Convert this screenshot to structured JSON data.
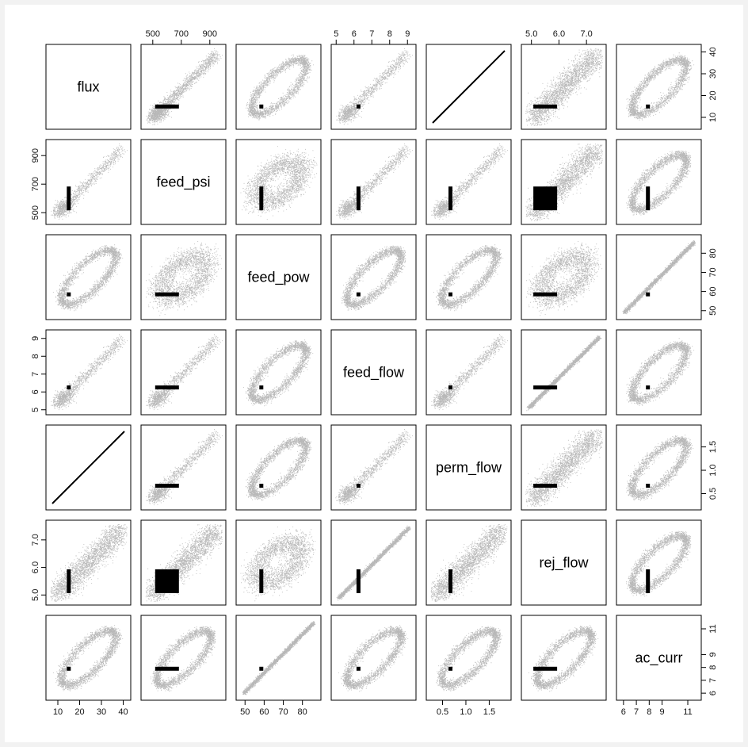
{
  "chart_data": {
    "type": "scatter",
    "subtype": "scatterplot-matrix",
    "title": "",
    "grid": false,
    "variables": [
      {
        "name": "flux",
        "range": [
          6,
          42
        ],
        "ticks": [
          "10",
          "20",
          "30",
          "40"
        ]
      },
      {
        "name": "feed_psi",
        "range": [
          440,
          990
        ],
        "ticks": [
          "500",
          "700",
          "900"
        ]
      },
      {
        "name": "feed_pow",
        "range": [
          47,
          88
        ],
        "ticks": [
          "50",
          "60",
          "70",
          "80"
        ]
      },
      {
        "name": "feed_flow",
        "range": [
          4.9,
          9.3
        ],
        "ticks": [
          "5",
          "6",
          "7",
          "8",
          "9"
        ]
      },
      {
        "name": "perm_flow",
        "range": [
          0.22,
          1.9
        ],
        "ticks": [
          "0.5",
          "1.0",
          "1.5"
        ]
      },
      {
        "name": "rej_flow",
        "range": [
          4.75,
          7.6
        ],
        "ticks": [
          "5.0",
          "6.0",
          "7.0"
        ]
      },
      {
        "name": "ac_curr",
        "range": [
          5.7,
          11.8
        ],
        "ticks": [
          "6",
          "7",
          "8",
          "9",
          "11"
        ]
      }
    ],
    "relationships": {
      "0-1": "linear",
      "0-2": "ellipse",
      "0-3": "linear",
      "0-4": "exact",
      "0-5": "linear-wide",
      "0-6": "ellipse",
      "1-2": "blob",
      "1-3": "linear",
      "1-4": "linear",
      "1-5": "linear-wide",
      "1-6": "ellipse",
      "2-3": "ellipse",
      "2-4": "ellipse",
      "2-5": "blob",
      "2-6": "tight",
      "3-4": "linear",
      "3-5": "tight",
      "3-6": "ellipse",
      "4-5": "linear-wide",
      "4-6": "ellipse",
      "5-6": "ellipse"
    },
    "clusters": {
      "flux": 15,
      "feed_psi": 600,
      "feed_pow": 58.5,
      "feed_flow": 6.25,
      "perm_flow": 0.67,
      "rej_flow": 5.5,
      "ac_curr": 7.9
    },
    "colors": {
      "points": "#000000",
      "frame": "#000000",
      "background": "#ffffff"
    }
  }
}
